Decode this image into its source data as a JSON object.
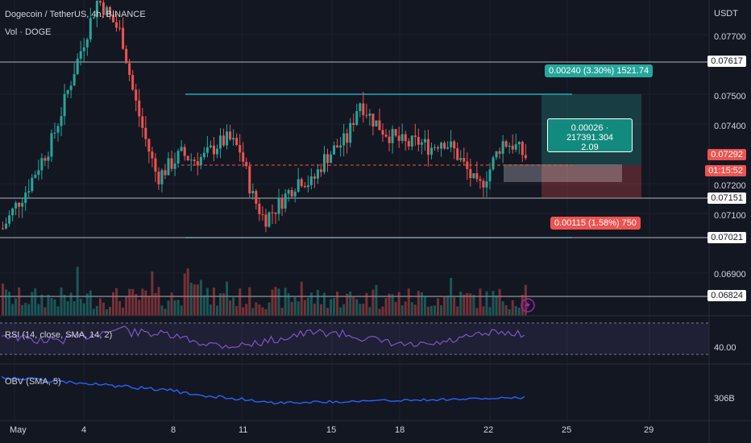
{
  "header": {
    "symbol_line": "Dogecoin / TetherUS, 4h, BINANCE",
    "volume_label": "Vol · DOGE",
    "currency": "USDT"
  },
  "price_axis": {
    "ticks": [
      "0.07700",
      "0.07500",
      "0.07400",
      "0.07200",
      "0.07100",
      "0.06900"
    ],
    "tick_values": [
      0.077,
      0.075,
      0.074,
      0.072,
      0.071,
      0.069
    ],
    "tags": {
      "resistance": "0.07617",
      "top_band": "0.07151",
      "lower_band": "0.07021",
      "support": "0.06824",
      "current_price": "0.07292",
      "countdown": "01:15:52"
    }
  },
  "position_tool": {
    "target_label": "0.00240 (3.30%) 1521.74",
    "stop_label": "0.00115 (1.58%) 750",
    "info_line1": "0.00026 · 217391.304",
    "info_line2": "2.09"
  },
  "rsi": {
    "label": "RSI (14, close, SMA, 14, 2)",
    "value": "40.00"
  },
  "obv": {
    "label": "OBV (SMA, 5)",
    "value": "306B"
  },
  "time_axis": {
    "labels": [
      "May",
      "4",
      "8",
      "11",
      "15",
      "18",
      "22",
      "25",
      "29"
    ]
  },
  "colors": {
    "background": "#131722",
    "up": "#26a69a",
    "down": "#ef5350",
    "rsi_line": "#7e57c2",
    "obv_line": "#2962ff",
    "target_fill": "#26a69a",
    "stop_fill": "#ef5350"
  },
  "chart_data": {
    "type": "candlestick",
    "title": "",
    "series": [
      {
        "name": "DOGEUSDT",
        "close": [
          0.0705,
          0.0712,
          0.0718,
          0.0726,
          0.0733,
          0.0745,
          0.0758,
          0.077,
          0.0782,
          0.0776,
          0.077,
          0.075,
          0.0735,
          0.0722,
          0.0726,
          0.073,
          0.0728,
          0.0729,
          0.0733,
          0.0735,
          0.0731,
          0.0716,
          0.0708,
          0.0712,
          0.0717,
          0.0722,
          0.072,
          0.0728,
          0.0732,
          0.0735,
          0.0748,
          0.0742,
          0.0738,
          0.0735,
          0.0733,
          0.0734,
          0.0732,
          0.0735,
          0.0731,
          0.0725,
          0.0718,
          0.0725,
          0.0734,
          0.0733,
          0.0729
        ]
      }
    ]
  }
}
